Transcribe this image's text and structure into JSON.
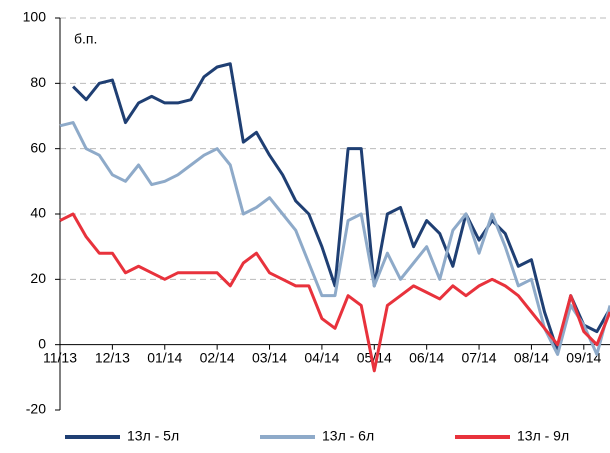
{
  "chart_data": {
    "type": "line",
    "annotation": "б.п.",
    "categories": [
      "11/13",
      null,
      null,
      null,
      "12/13",
      null,
      null,
      null,
      "01/14",
      null,
      null,
      null,
      "02/14",
      null,
      null,
      null,
      "03/14",
      null,
      null,
      null,
      "04/14",
      null,
      null,
      null,
      "05/14",
      null,
      null,
      null,
      "06/14",
      null,
      null,
      null,
      "07/14",
      null,
      null,
      null,
      "08/14",
      null,
      null,
      null,
      "09/14",
      null,
      null
    ],
    "series": [
      {
        "name": "13л - 5л",
        "color": "#1f3f73",
        "values": [
          null,
          79,
          75,
          80,
          81,
          68,
          74,
          76,
          74,
          74,
          75,
          82,
          85,
          86,
          62,
          65,
          58,
          52,
          44,
          40,
          30,
          18,
          60,
          60,
          18,
          40,
          42,
          30,
          38,
          34,
          24,
          40,
          32,
          38,
          34,
          24,
          26,
          10,
          -2,
          15,
          6,
          4,
          11
        ]
      },
      {
        "name": "13л - 6л",
        "color": "#8eaac9",
        "values": [
          67,
          68,
          60,
          58,
          52,
          50,
          55,
          49,
          50,
          52,
          55,
          58,
          60,
          55,
          40,
          42,
          45,
          40,
          35,
          25,
          15,
          15,
          38,
          40,
          18,
          28,
          20,
          25,
          30,
          20,
          35,
          40,
          28,
          40,
          30,
          18,
          20,
          5,
          -3,
          12,
          6,
          -3,
          12
        ]
      },
      {
        "name": "13л - 9л",
        "color": "#e8323c",
        "values": [
          38,
          40,
          33,
          28,
          28,
          22,
          24,
          22,
          20,
          22,
          22,
          22,
          22,
          18,
          25,
          28,
          22,
          20,
          18,
          18,
          8,
          5,
          15,
          12,
          -8,
          12,
          15,
          18,
          16,
          14,
          18,
          15,
          18,
          20,
          18,
          15,
          10,
          5,
          0,
          15,
          4,
          0,
          10
        ]
      }
    ],
    "ylim": [
      -20,
      100
    ],
    "yticks": [
      -20,
      0,
      20,
      40,
      60,
      80,
      100
    ],
    "grid": true,
    "legend": "bottom"
  }
}
